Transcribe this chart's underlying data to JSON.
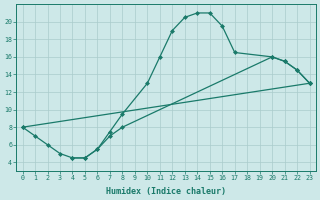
{
  "xlabel": "Humidex (Indice chaleur)",
  "background_color": "#cde8e8",
  "line_color": "#1a7a6a",
  "grid_color": "#aacccc",
  "xlim": [
    -0.5,
    23.5
  ],
  "ylim": [
    3,
    22
  ],
  "x_ticks": [
    0,
    1,
    2,
    3,
    4,
    5,
    6,
    7,
    8,
    9,
    10,
    11,
    12,
    13,
    14,
    15,
    16,
    17,
    18,
    19,
    20,
    21,
    22,
    23
  ],
  "y_ticks": [
    4,
    6,
    8,
    10,
    12,
    14,
    16,
    18,
    20
  ],
  "series": [
    {
      "x": [
        0,
        1,
        2,
        3,
        4,
        5,
        6,
        7,
        8,
        10,
        11,
        12,
        13,
        14,
        15,
        16,
        17,
        20,
        21,
        22,
        23
      ],
      "y": [
        8,
        7,
        6,
        5,
        4.5,
        4.5,
        5.5,
        7.5,
        9.5,
        13,
        16,
        19,
        20.5,
        21,
        21,
        19.5,
        16.5,
        16,
        15.5,
        14.5,
        13
      ]
    },
    {
      "x": [
        0,
        23
      ],
      "y": [
        8,
        13
      ]
    },
    {
      "x": [
        4,
        5,
        6,
        7,
        8,
        20,
        21,
        22,
        23
      ],
      "y": [
        4.5,
        4.5,
        5.5,
        7,
        8,
        16,
        15.5,
        14.5,
        13
      ]
    }
  ]
}
